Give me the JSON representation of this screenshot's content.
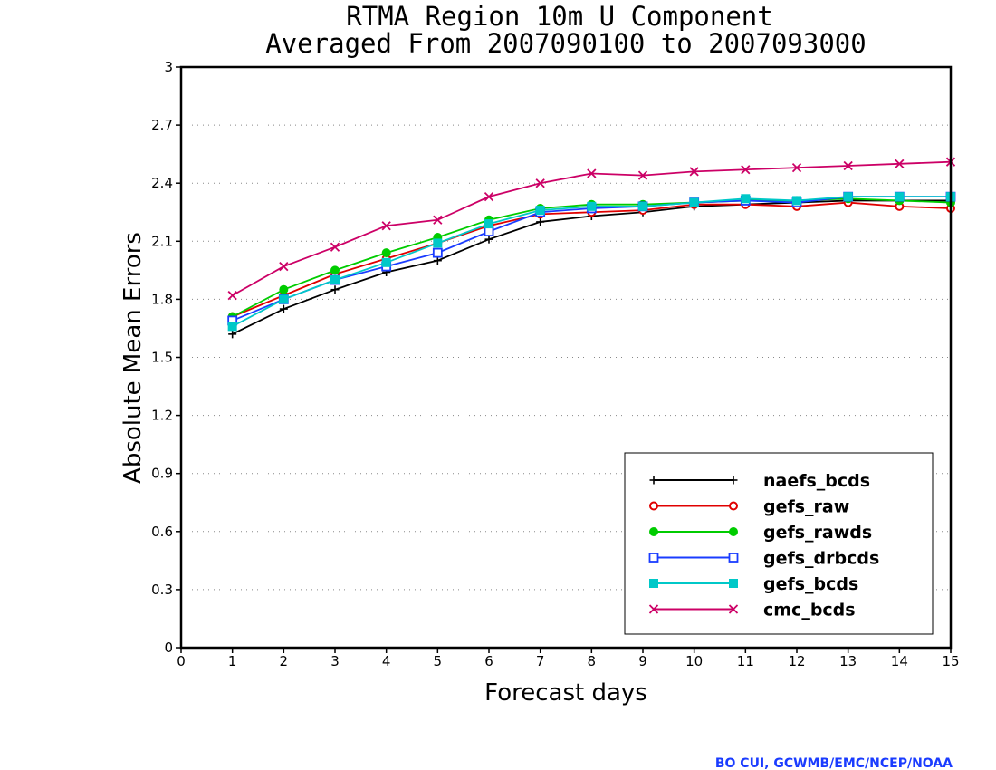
{
  "chart_data": {
    "type": "line",
    "title": "RTMA Region 10m U Component",
    "subtitle": "Averaged From 2007090100 to 2007093000",
    "xlabel": "Forecast days",
    "ylabel": "Absolute Mean Errors",
    "xlim": [
      0,
      15
    ],
    "ylim": [
      0,
      3
    ],
    "x_ticks": [
      0,
      1,
      2,
      3,
      4,
      5,
      6,
      7,
      8,
      9,
      10,
      11,
      12,
      13,
      14,
      15
    ],
    "y_ticks": [
      0,
      0.3,
      0.6,
      0.9,
      1.2,
      1.5,
      1.8,
      2.1,
      2.4,
      2.7,
      3
    ],
    "grid": "horizontal dotted",
    "legend_position": "bottom-right",
    "x": [
      1,
      2,
      3,
      4,
      5,
      6,
      7,
      8,
      9,
      10,
      11,
      12,
      13,
      14,
      15
    ],
    "series": [
      {
        "name": "naefs_bcds",
        "color": "#000000",
        "marker": "plus",
        "values": [
          1.62,
          1.75,
          1.85,
          1.94,
          2.0,
          2.11,
          2.2,
          2.23,
          2.25,
          2.28,
          2.29,
          2.3,
          2.31,
          2.31,
          2.31
        ]
      },
      {
        "name": "gefs_raw",
        "color": "#e00000",
        "marker": "open-circle",
        "values": [
          1.71,
          1.82,
          1.93,
          2.01,
          2.09,
          2.18,
          2.24,
          2.25,
          2.26,
          2.29,
          2.29,
          2.28,
          2.3,
          2.28,
          2.27
        ]
      },
      {
        "name": "gefs_rawds",
        "color": "#00cc00",
        "marker": "filled-circle",
        "values": [
          1.71,
          1.85,
          1.95,
          2.04,
          2.12,
          2.21,
          2.27,
          2.29,
          2.29,
          2.3,
          2.31,
          2.31,
          2.32,
          2.31,
          2.3
        ]
      },
      {
        "name": "gefs_drbcds",
        "color": "#1a3cff",
        "marker": "open-square",
        "values": [
          1.69,
          1.8,
          1.9,
          1.97,
          2.04,
          2.15,
          2.25,
          2.27,
          2.28,
          2.3,
          2.31,
          2.3,
          2.33,
          2.33,
          2.33
        ]
      },
      {
        "name": "gefs_bcds",
        "color": "#00c8c8",
        "marker": "filled-square",
        "values": [
          1.66,
          1.8,
          1.9,
          1.99,
          2.09,
          2.19,
          2.26,
          2.28,
          2.28,
          2.3,
          2.32,
          2.31,
          2.33,
          2.33,
          2.33
        ]
      },
      {
        "name": "cmc_bcds",
        "color": "#cc0066",
        "marker": "x",
        "values": [
          1.82,
          1.97,
          2.07,
          2.18,
          2.21,
          2.33,
          2.4,
          2.45,
          2.44,
          2.46,
          2.47,
          2.48,
          2.49,
          2.5,
          2.51
        ]
      }
    ]
  },
  "footer": {
    "credit": "BO CUI, GCWMB/EMC/NCEP/NOAA"
  }
}
